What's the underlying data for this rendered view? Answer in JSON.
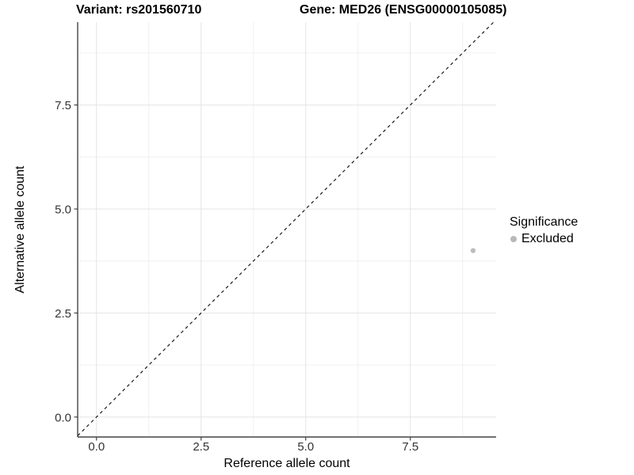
{
  "chart_data": {
    "type": "scatter",
    "title_left": "Variant: rs201560710",
    "title_right": "Gene: MED26 (ENSG00000105085)",
    "xlabel": "Reference allele count",
    "ylabel": "Alternative allele count",
    "xlim": [
      -0.45,
      9.55
    ],
    "ylim": [
      -0.48,
      9.49
    ],
    "x_tick_values": [
      0,
      2.5,
      5,
      7.5
    ],
    "x_tick_labels": [
      "0.0",
      "2.5",
      "5.0",
      "7.5"
    ],
    "y_tick_values": [
      0,
      2.5,
      5,
      7.5
    ],
    "y_tick_labels": [
      "0.0",
      "2.5",
      "5.0",
      "7.5"
    ],
    "x_minor_ticks": [
      1.25,
      3.75,
      6.25,
      8.75
    ],
    "y_minor_ticks": [
      1.25,
      3.75,
      6.25,
      8.75
    ],
    "grid": true,
    "series": [
      {
        "name": "Excluded",
        "color": "#bdbdbd",
        "marker": "circle",
        "marker_radius": 3.2,
        "points": [
          [
            9,
            4
          ]
        ]
      }
    ],
    "reference_line": {
      "slope": 1,
      "intercept": 0,
      "linetype": "dashed",
      "color": "#1a1a1a"
    },
    "legend": {
      "title": "Significance",
      "position": "right",
      "entries": [
        {
          "label": "Excluded",
          "color": "#b8b8b8",
          "marker": "circle"
        }
      ]
    },
    "style": {
      "background": "#ffffff",
      "grid_major_color": "#e4e4e4",
      "grid_minor_color": "#f0f0f0",
      "axis_line_color": "#444444",
      "tick_color": "#444444",
      "tick_label_color": "#333333"
    }
  }
}
